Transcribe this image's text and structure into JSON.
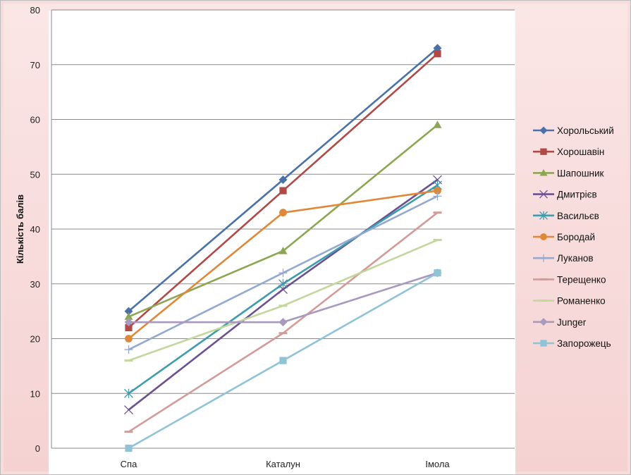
{
  "chart_data": {
    "type": "line",
    "title": "",
    "xlabel": "",
    "ylabel": "Кількість балів",
    "ylim": [
      0,
      80
    ],
    "yticks": [
      0,
      10,
      20,
      30,
      40,
      50,
      60,
      70,
      80
    ],
    "categories": [
      "Спа",
      "Каталун",
      "Імола"
    ],
    "grid": "horizontal",
    "legend_position": "right",
    "series": [
      {
        "name": "Хорольський",
        "values": [
          25,
          49,
          73
        ],
        "color": "#4a72a8",
        "marker": "diamond"
      },
      {
        "name": "Хорошавін",
        "values": [
          22,
          47,
          72
        ],
        "color": "#b04a46",
        "marker": "square"
      },
      {
        "name": "Шапошник",
        "values": [
          24,
          36,
          59
        ],
        "color": "#8ca653",
        "marker": "triangle"
      },
      {
        "name": "Дмитрієв",
        "values": [
          7,
          29,
          49
        ],
        "color": "#6c5190",
        "marker": "x"
      },
      {
        "name": "Васильєв",
        "values": [
          10,
          30,
          48
        ],
        "color": "#3f9bae",
        "marker": "star"
      },
      {
        "name": "Бородай",
        "values": [
          20,
          43,
          47
        ],
        "color": "#e0883a",
        "marker": "circle"
      },
      {
        "name": "Луканов",
        "values": [
          18,
          32,
          46
        ],
        "color": "#93a9d2",
        "marker": "plus"
      },
      {
        "name": "Терещенко",
        "values": [
          3,
          21,
          43
        ],
        "color": "#d39b98",
        "marker": "dash"
      },
      {
        "name": "Романенко",
        "values": [
          16,
          26,
          38
        ],
        "color": "#c3d69b",
        "marker": "dash"
      },
      {
        "name": "Junger",
        "values": [
          23,
          23,
          32
        ],
        "color": "#a899bf",
        "marker": "diamond"
      },
      {
        "name": "Запорожець",
        "values": [
          0,
          16,
          32
        ],
        "color": "#8fc3d6",
        "marker": "square"
      }
    ]
  }
}
